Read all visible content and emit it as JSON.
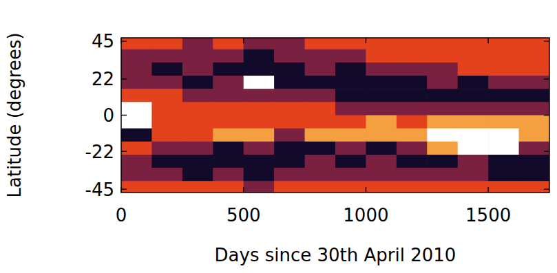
{
  "chart_data": {
    "type": "heatmap",
    "xlabel": "Days since 30th April 2010",
    "ylabel": "Latitude (degrees)",
    "x": [
      62.5,
      187.5,
      312.5,
      437.5,
      562.5,
      687.5,
      812.5,
      937.5,
      1062.5,
      1187.5,
      1312.5,
      1437.5,
      1562.5,
      1687.5
    ],
    "y": [
      44,
      36,
      28,
      20,
      12,
      4,
      -4,
      -12,
      -20,
      -28,
      -36,
      -44
    ],
    "values": [
      [
        0,
        0,
        -1,
        0,
        -1,
        -1,
        0,
        0,
        0,
        0,
        0,
        0,
        0,
        0
      ],
      [
        -1,
        -1,
        -1,
        -1,
        -2,
        -1,
        -1,
        -1,
        0,
        0,
        0,
        0,
        0,
        0
      ],
      [
        -1,
        -2,
        -1,
        -2,
        -2,
        -2,
        -1,
        -2,
        -1,
        -1,
        -1,
        0,
        0,
        0
      ],
      [
        -1,
        -1,
        -2,
        -1,
        2,
        -2,
        -2,
        -2,
        -2,
        -2,
        -1,
        -2,
        -1,
        -1
      ],
      [
        0,
        0,
        -1,
        -1,
        -1,
        -1,
        -1,
        -2,
        -2,
        -2,
        -2,
        -2,
        -2,
        -2
      ],
      [
        2,
        0,
        0,
        0,
        0,
        0,
        0,
        -1,
        -1,
        -1,
        -1,
        -1,
        -1,
        -1
      ],
      [
        2,
        0,
        0,
        0,
        0,
        0,
        0,
        0,
        1,
        0,
        1,
        1,
        1,
        1
      ],
      [
        -2,
        0,
        0,
        1,
        1,
        -1,
        1,
        1,
        1,
        1,
        2,
        2,
        2,
        1
      ],
      [
        0,
        -1,
        -1,
        -2,
        -1,
        -2,
        -2,
        -1,
        -2,
        -1,
        1,
        2,
        2,
        -1
      ],
      [
        -1,
        -2,
        -2,
        -2,
        -2,
        -2,
        -1,
        -2,
        -1,
        -2,
        -2,
        -1,
        -2,
        -2
      ],
      [
        -1,
        -1,
        -2,
        -1,
        -2,
        -1,
        -1,
        -1,
        -1,
        -1,
        -1,
        -1,
        -2,
        -2
      ],
      [
        0,
        0,
        0,
        0,
        -1,
        0,
        0,
        0,
        0,
        0,
        0,
        0,
        0,
        0
      ]
    ],
    "xlim": [
      0,
      1750
    ],
    "ylim": [
      -47,
      47
    ],
    "xticks": [
      0,
      500,
      1000,
      1500
    ],
    "yticks": [
      45,
      22,
      0,
      -22,
      -45
    ]
  }
}
